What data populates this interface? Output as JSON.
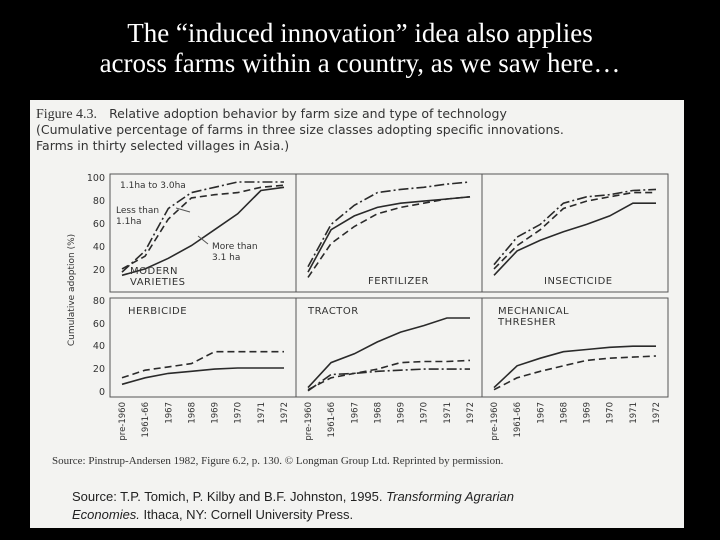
{
  "slide": {
    "title_line1": "The “induced innovation” idea also applies",
    "title_line2": "across farms within a country, as we saw here…"
  },
  "figure": {
    "number": "Figure 4.3.",
    "caption_line1": "Relative adoption behavior by farm size and type of technology",
    "caption_line2": "(Cumulative percentage of farms in three size classes adopting specific innovations.",
    "caption_line3": "Farms in thirty selected villages in Asia.)",
    "source_line": "Source: Pinstrup-Andersen 1982, Figure 6.2, p. 130. © Longman Group Ltd. Reprinted by permission.",
    "citation_line1_pre": "Source: T.P. Tomich, P. Kilby and B.F. Johnston, 1995.",
    "citation_line1_italic": "Transforming Agrarian",
    "citation_line2_italic": "Economies.",
    "citation_line2_post": "Ithaca, NY: Cornell University Press.",
    "line_color": "#2a2a2a"
  },
  "chart_data": {
    "type": "line",
    "ylabel": "Cumulative adoption (%)",
    "categories": [
      "pre-1960",
      "1961-66",
      "1967",
      "1968",
      "1969",
      "1970",
      "1971",
      "1972"
    ],
    "top_row_yticks": [
      "100",
      "80",
      "60",
      "40",
      "20"
    ],
    "bottom_row_yticks": [
      "80",
      "60",
      "40",
      "20",
      "0"
    ],
    "top_row_ylim": [
      0,
      100
    ],
    "bottom_row_ylim": [
      0,
      80
    ],
    "panels": [
      {
        "label": [
          "MODERN",
          "VARIETIES"
        ],
        "series": [
          {
            "name": "1.1ha to 3.0ha",
            "style": "dashdot",
            "values": [
              15,
              35,
              75,
              90,
              95,
              100,
              100,
              100
            ]
          },
          {
            "name": "Less than 1.1ha",
            "style": "dashed",
            "values": [
              18,
              30,
              65,
              85,
              88,
              90,
              95,
              97
            ]
          },
          {
            "name": "More than 3.1 ha",
            "style": "solid",
            "values": [
              12,
              18,
              28,
              40,
              55,
              70,
              92,
              95
            ]
          }
        ],
        "annotations": [
          "1.1ha to 3.0ha",
          "Less than",
          "1.1ha",
          "More than",
          "3.1 ha"
        ]
      },
      {
        "label": [
          "FERTILIZER"
        ],
        "series": [
          {
            "name": "1.1ha to 3.0ha",
            "style": "dashdot",
            "values": [
              20,
              60,
              78,
              90,
              93,
              95,
              98,
              100
            ]
          },
          {
            "name": "More than 3.1 ha",
            "style": "solid",
            "values": [
              15,
              55,
              68,
              76,
              80,
              82,
              84,
              86
            ]
          },
          {
            "name": "Less than 1.1ha",
            "style": "dashed",
            "values": [
              10,
              42,
              58,
              70,
              76,
              80,
              84,
              86
            ]
          }
        ]
      },
      {
        "label": [
          "INSECTICIDE"
        ],
        "series": [
          {
            "name": "1.1ha to 3.0ha",
            "style": "dashdot",
            "values": [
              22,
              48,
              60,
              80,
              86,
              88,
              92,
              93
            ]
          },
          {
            "name": "Less than 1.1ha",
            "style": "dashed",
            "values": [
              18,
              40,
              55,
              75,
              82,
              86,
              90,
              90
            ]
          },
          {
            "name": "More than 3.1 ha",
            "style": "solid",
            "values": [
              12,
              35,
              45,
              53,
              60,
              68,
              80,
              80
            ]
          }
        ]
      },
      {
        "label": [
          "HERBICIDE"
        ],
        "series": [
          {
            "name": "Less than 1.1ha",
            "style": "dashed",
            "values": [
              14,
              21,
              24,
              27,
              38,
              38,
              38,
              38
            ]
          },
          {
            "name": "More than 3.1 ha",
            "style": "solid",
            "values": [
              8,
              14,
              18,
              20,
              22,
              23,
              23,
              23
            ]
          }
        ]
      },
      {
        "label": [
          "TRACTOR"
        ],
        "series": [
          {
            "name": "More than 3.1 ha",
            "style": "solid",
            "values": [
              5,
              28,
              36,
              47,
              56,
              62,
              69,
              69
            ]
          },
          {
            "name": "Less than 1.1ha",
            "style": "dashed",
            "values": [
              3,
              14,
              18,
              22,
              28,
              29,
              29,
              30
            ]
          },
          {
            "name": "1.1ha to 3.0ha",
            "style": "dashdot",
            "values": [
              2,
              17,
              18,
              20,
              21,
              22,
              22,
              22
            ]
          }
        ]
      },
      {
        "label": [
          "MECHANICAL",
          "THRESHER"
        ],
        "series": [
          {
            "name": "More than 3.1 ha",
            "style": "solid",
            "values": [
              5,
              25,
              32,
              38,
              40,
              42,
              43,
              43
            ]
          },
          {
            "name": "Less than 1.1ha",
            "style": "dashed",
            "values": [
              3,
              14,
              20,
              25,
              30,
              32,
              33,
              34
            ]
          }
        ]
      }
    ]
  }
}
